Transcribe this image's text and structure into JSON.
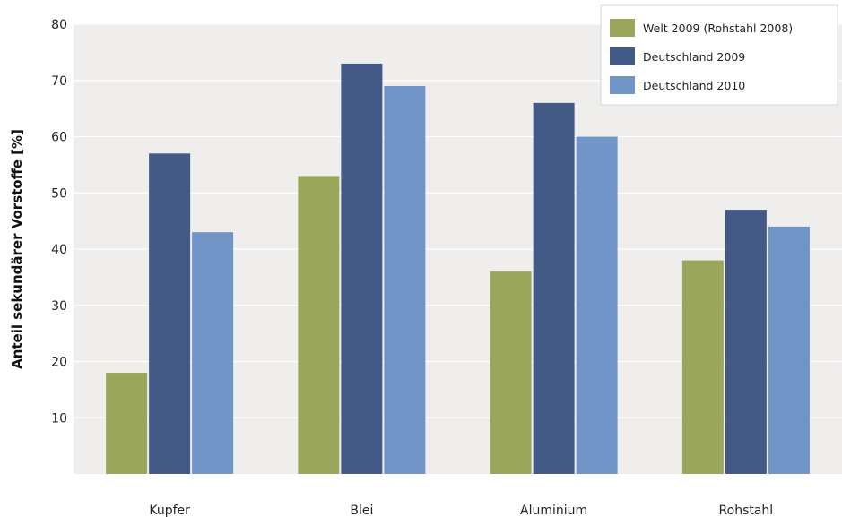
{
  "chart_data": {
    "type": "bar",
    "categories": [
      "Kupfer",
      "Blei",
      "Aluminium",
      "Rohstahl"
    ],
    "series": [
      {
        "name": "Welt 2009 (Rohstahl 2008)",
        "values": [
          18,
          53,
          36,
          38
        ],
        "color": "#9aa65c"
      },
      {
        "name": "Deutschland 2009",
        "values": [
          57,
          73,
          66,
          47
        ],
        "color": "#445a86"
      },
      {
        "name": "Deutschland 2010",
        "values": [
          43,
          69,
          60,
          44
        ],
        "color": "#6f94c5"
      }
    ],
    "ylabel": "Anteil sekundärer Vorstoffe [%]",
    "ylim": [
      0,
      80
    ],
    "yticks": [
      10,
      20,
      30,
      40,
      50,
      60,
      70,
      80
    ],
    "grid": true,
    "legend": "top-right",
    "plot_background": "#efeeec"
  }
}
